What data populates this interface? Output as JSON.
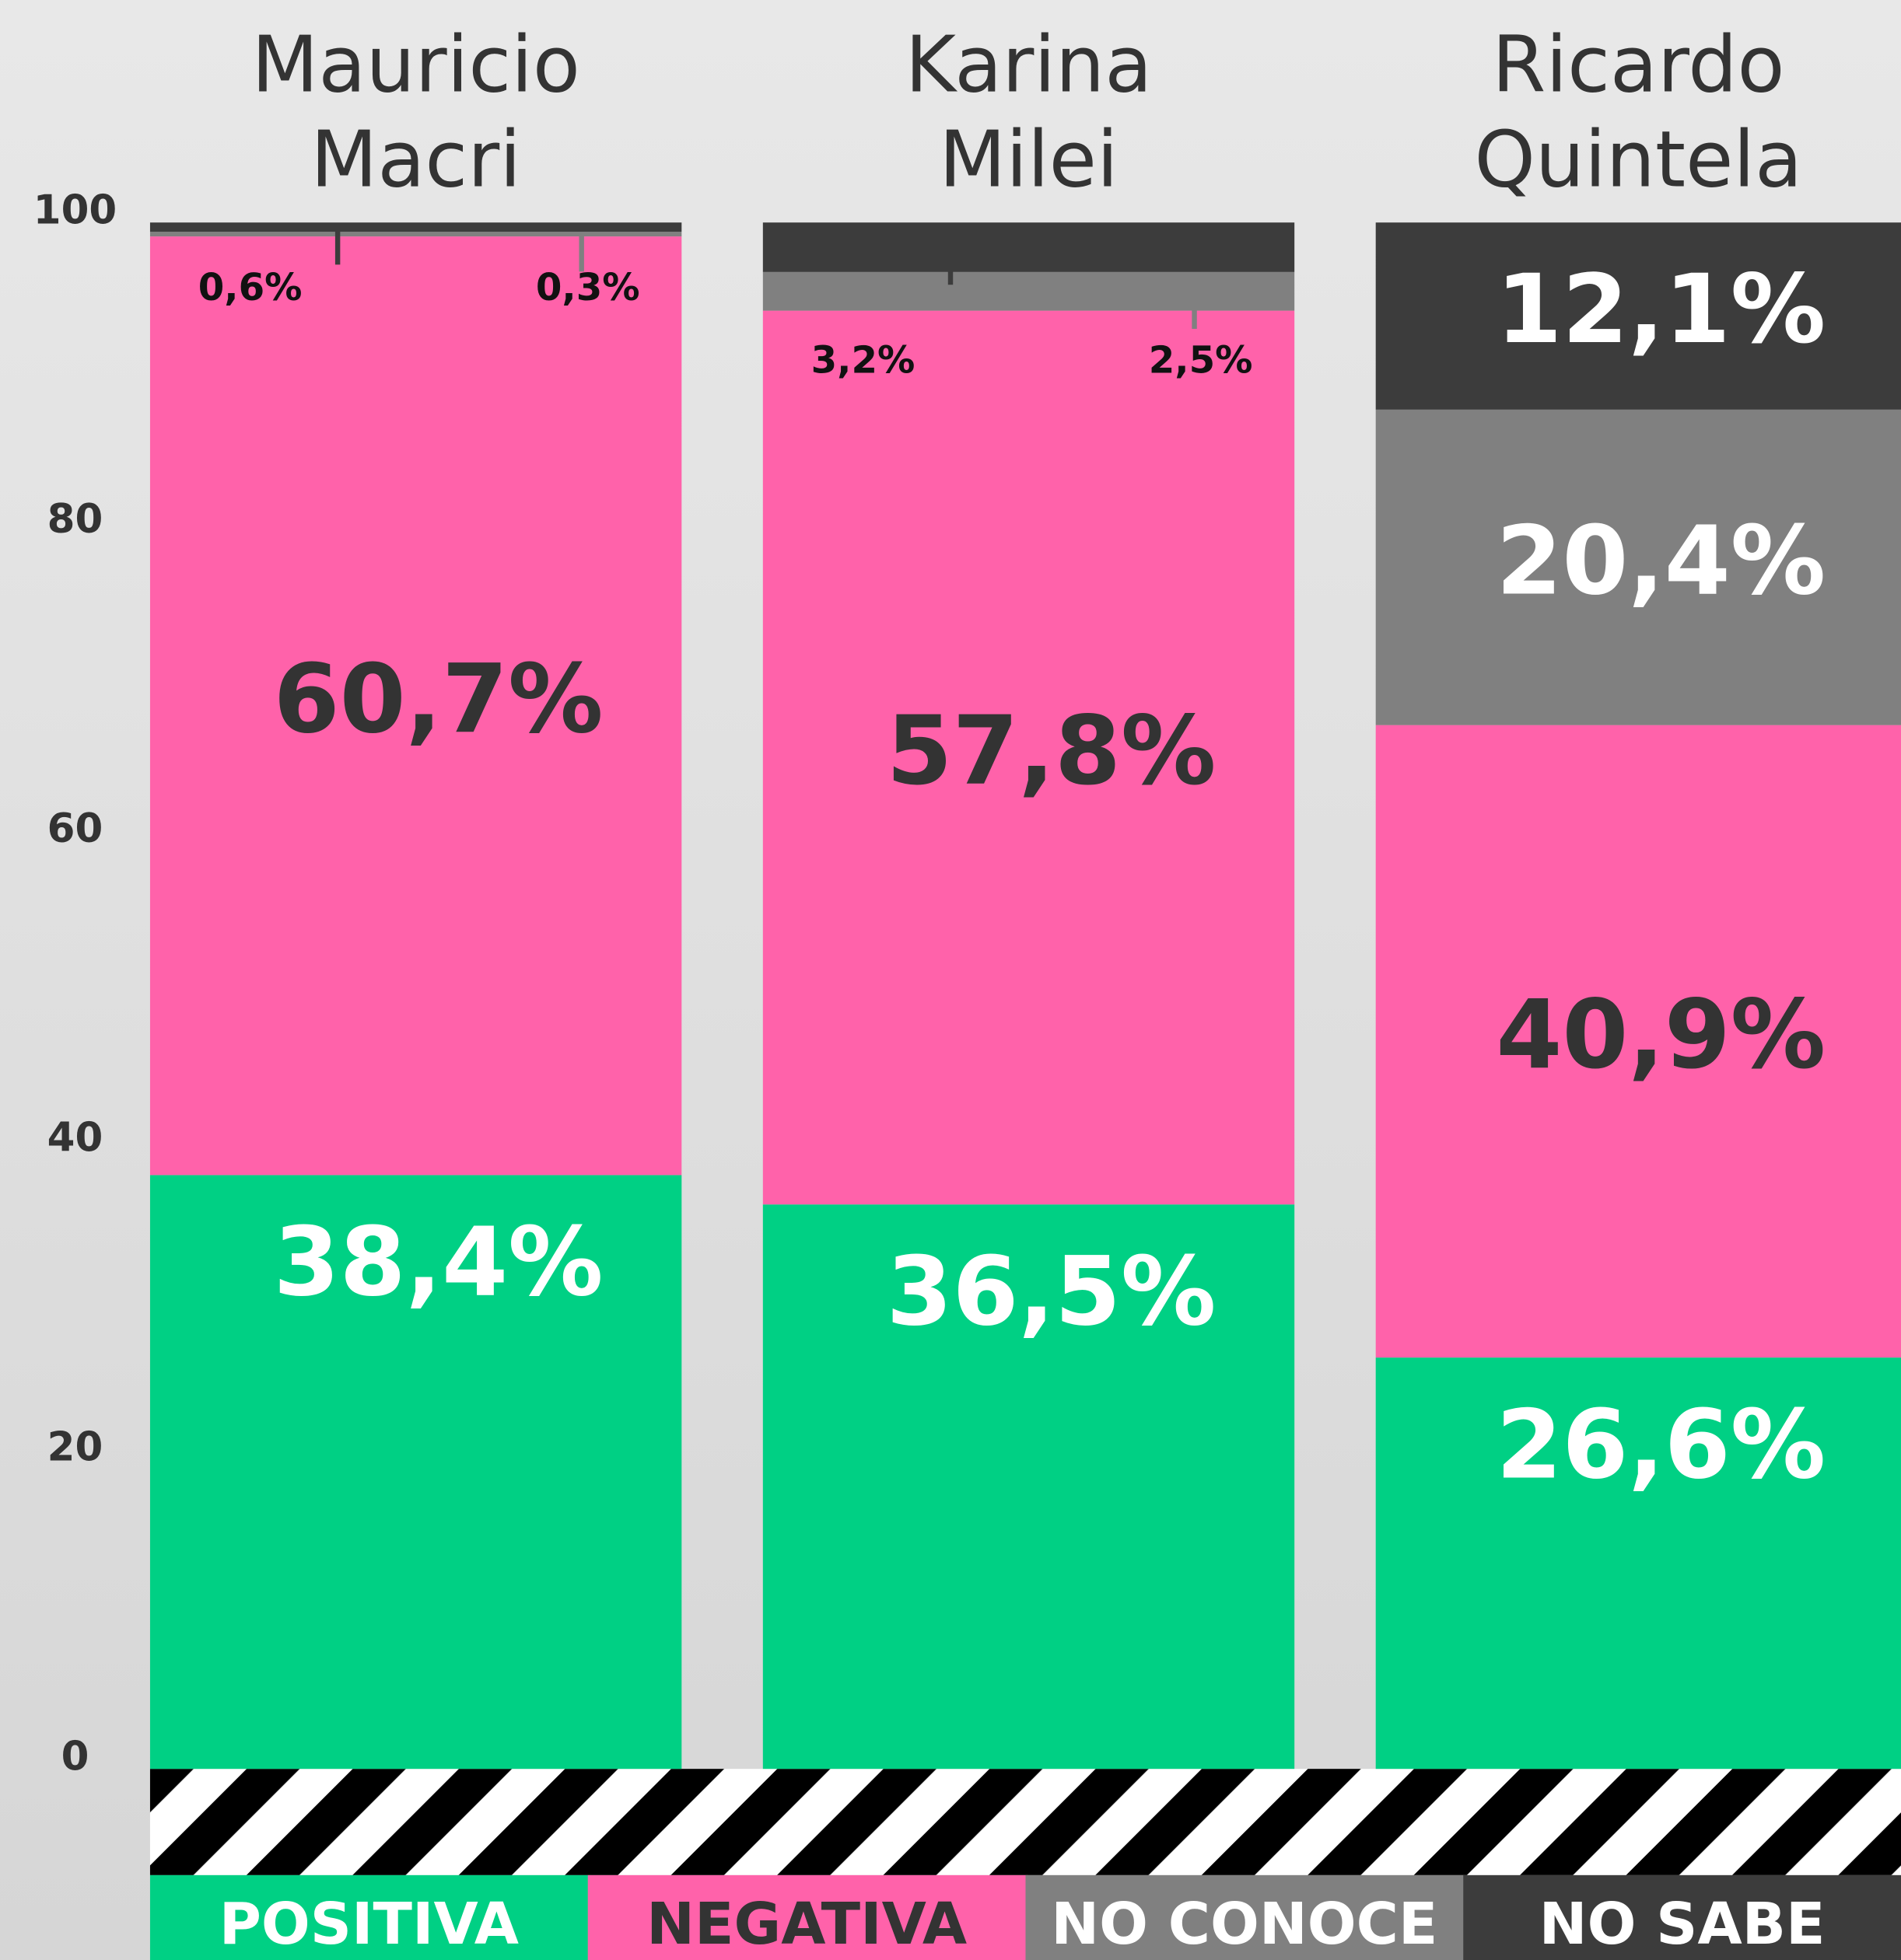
{
  "chart_data": {
    "type": "stacked-bar",
    "categories": [
      "Mauricio Macri",
      "Karina Milei",
      "Ricardo Quintela"
    ],
    "series": [
      {
        "name": "POSITIVA",
        "color": "#00d084",
        "values": [
          38.4,
          36.5,
          26.6
        ],
        "value_labels": [
          "38,4%",
          "36,5%",
          "26,6%"
        ]
      },
      {
        "name": "NEGATIVA",
        "color": "#ff62aa",
        "values": [
          60.7,
          57.8,
          40.9
        ],
        "value_labels": [
          "60,7%",
          "57,8%",
          "40,9%"
        ]
      },
      {
        "name": "NO CONOCE",
        "color": "#808080",
        "values": [
          0.3,
          2.5,
          20.4
        ],
        "value_labels": [
          "0,3%",
          "2,5%",
          "20,4%"
        ]
      },
      {
        "name": "NO SABE",
        "color": "#3c3c3c",
        "values": [
          0.6,
          3.2,
          12.1
        ],
        "value_labels": [
          "0,6%",
          "3,2%",
          "12,1%"
        ]
      }
    ],
    "ylim": [
      0,
      100
    ],
    "yticks": [
      0,
      20,
      40,
      60,
      80,
      100
    ]
  }
}
